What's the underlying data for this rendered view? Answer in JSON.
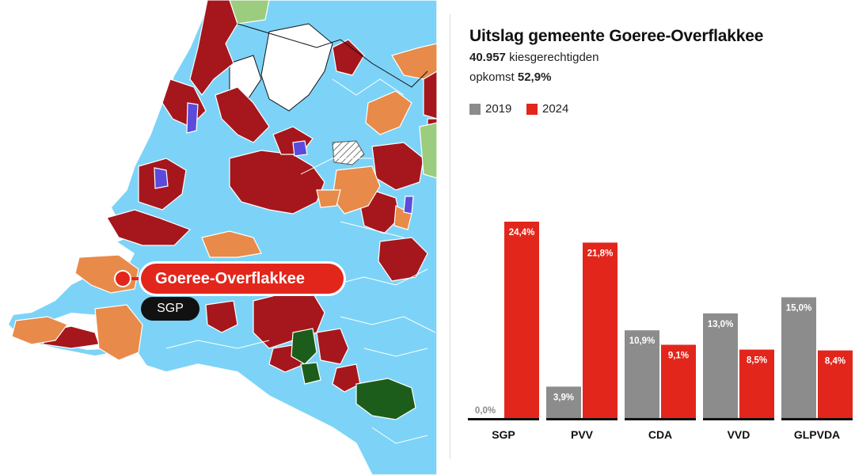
{
  "map": {
    "highlight_label": "Goeree-Overflakkee",
    "party_label": "SGP",
    "colors": {
      "water_sea": "#ffffff",
      "vvd": "#7cd3f7",
      "pvv": "#a5171c",
      "cda": "#e88a4a",
      "sgp": "#e88a4a",
      "glpvda": "#1d5d1b",
      "bbb": "#9ccd7e",
      "d66": "#5a4bdc",
      "border": "#ffffff"
    }
  },
  "chart_data": {
    "type": "bar",
    "title": "Uitslag gemeente Goeree-Overflakkee",
    "voters_value": "40.957",
    "voters_label": "kiesgerechtigden",
    "turnout_label": "opkomst",
    "turnout_value": "52,9%",
    "categories": [
      "SGP",
      "PVV",
      "CDA",
      "VVD",
      "GLPVDA"
    ],
    "series": [
      {
        "name": "2019",
        "color": "#8c8c8c",
        "values": [
          0.0,
          3.9,
          10.9,
          13.0,
          15.0
        ],
        "labels": [
          "0,0%",
          "3,9%",
          "10,9%",
          "13,0%",
          "15,0%"
        ]
      },
      {
        "name": "2024",
        "color": "#e2261c",
        "values": [
          24.4,
          21.8,
          9.1,
          8.5,
          8.4
        ],
        "labels": [
          "24,4%",
          "21,8%",
          "9,1%",
          "8,5%",
          "8,4%"
        ]
      }
    ],
    "ylim": [
      0,
      25
    ],
    "legend_position": "top-left",
    "grid": false
  }
}
